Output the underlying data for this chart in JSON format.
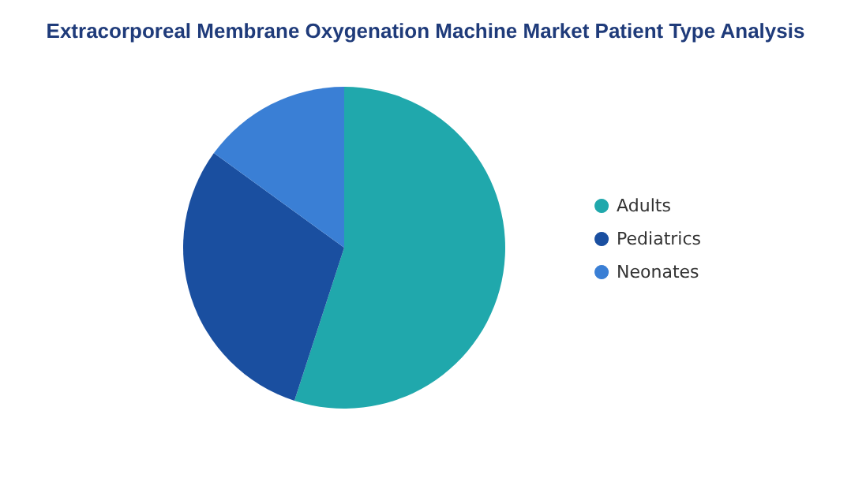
{
  "chart_data": {
    "type": "pie",
    "title": "Extracorporeal Membrane Oxygenation Machine Market Patient Type Analysis",
    "categories": [
      "Adults",
      "Pediatrics",
      "Neonates"
    ],
    "values": [
      55,
      30,
      15
    ],
    "colors": [
      "#20a8ac",
      "#1a4fa0",
      "#3a7fd5"
    ],
    "legend": "right"
  }
}
